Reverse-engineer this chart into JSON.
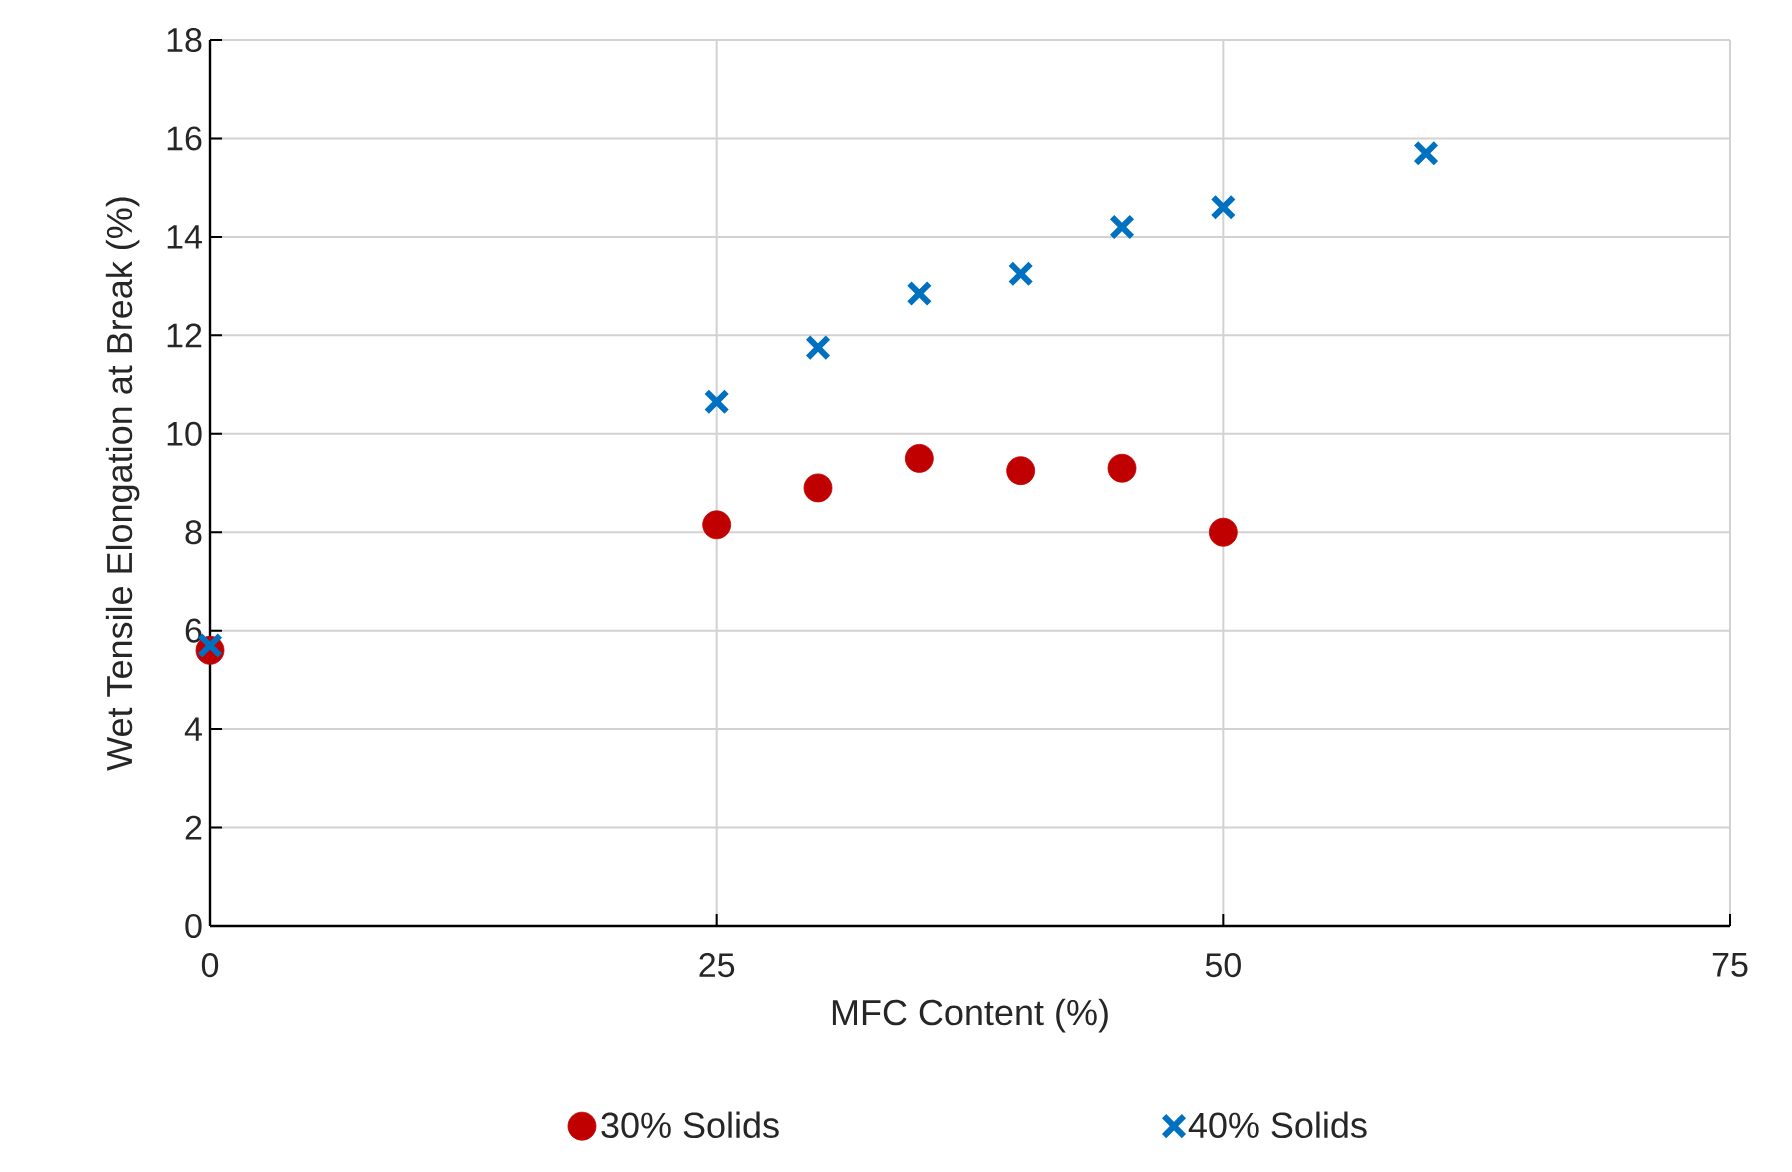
{
  "chart_data": {
    "type": "scatter",
    "xlabel": "MFC Content (%)",
    "ylabel": "Wet Tensile  Elongation at Break (%)",
    "xlim": [
      0,
      75
    ],
    "xticks": [
      0,
      25,
      50,
      75
    ],
    "ylim": [
      0,
      18
    ],
    "yticks": [
      0,
      2,
      4,
      6,
      8,
      10,
      12,
      14,
      16,
      18
    ],
    "grid": true,
    "legend": "bottom",
    "series": [
      {
        "name": "30% Solids",
        "color": "#c00000",
        "marker": "circle",
        "x": [
          0,
          25,
          30,
          35,
          40,
          45,
          50
        ],
        "values": [
          5.6,
          8.15,
          8.9,
          9.5,
          9.25,
          9.3,
          8.0
        ]
      },
      {
        "name": "40% Solids",
        "color": "#0070c0",
        "marker": "cross",
        "x": [
          0,
          25,
          30,
          35,
          40,
          45,
          50,
          60
        ],
        "values": [
          5.7,
          10.65,
          11.75,
          12.85,
          13.25,
          14.2,
          14.6,
          15.7
        ]
      }
    ]
  }
}
